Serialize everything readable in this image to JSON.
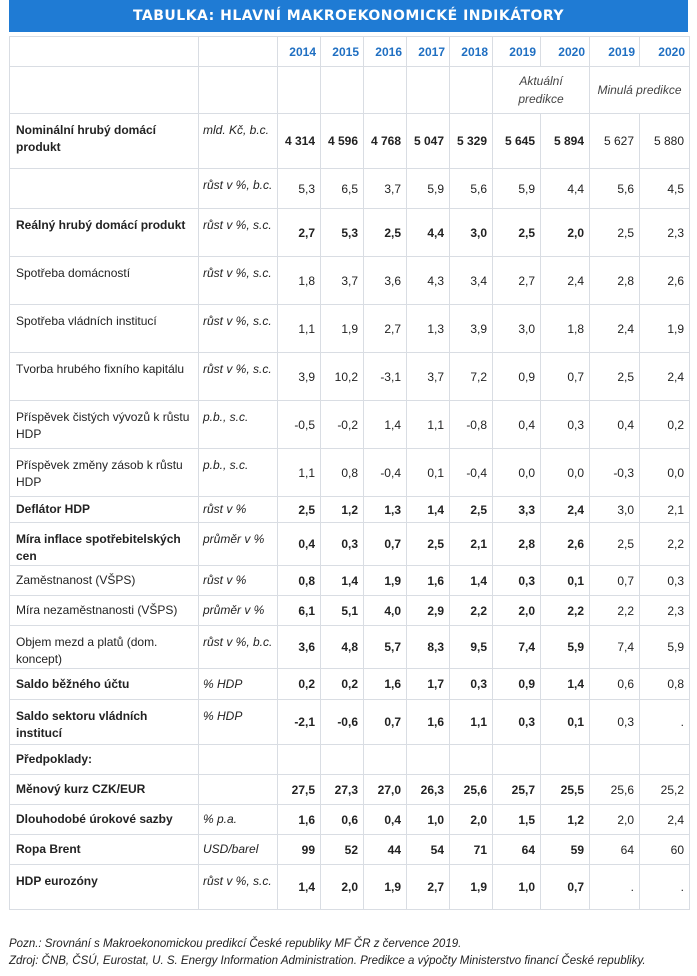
{
  "title": "TABULKA: HLAVNÍ MAKROEKONOMICKÉ INDIKÁTORY",
  "years": [
    "2014",
    "2015",
    "2016",
    "2017",
    "2018",
    "2019",
    "2020",
    "2019",
    "2020"
  ],
  "aktualni_label": "Aktuální predikce",
  "minula_label": "Minulá predikce",
  "rows": [
    {
      "name": "Nominální hrubý domácí produkt",
      "bold": true,
      "unit": "mld. Kč, b.c.",
      "values": [
        "4 314",
        "4 596",
        "4 768",
        "5 047",
        "5 329",
        "5 645",
        "5 894",
        "5 627",
        "5 880"
      ],
      "vbold": true
    },
    {
      "name": "",
      "bold": false,
      "unit": "růst v %, b.c.",
      "values": [
        "5,3",
        "6,5",
        "3,7",
        "5,9",
        "5,6",
        "5,9",
        "4,4",
        "5,6",
        "4,5"
      ],
      "vbold": false
    },
    {
      "name": "Reálný hrubý domácí produkt",
      "bold": true,
      "unit": "růst v %, s.c.",
      "values": [
        "2,7",
        "5,3",
        "2,5",
        "4,4",
        "3,0",
        "2,5",
        "2,0",
        "2,5",
        "2,3"
      ],
      "vbold": true
    },
    {
      "name": "Spotřeba domácností",
      "bold": false,
      "unit": "růst v %, s.c.",
      "values": [
        "1,8",
        "3,7",
        "3,6",
        "4,3",
        "3,4",
        "2,7",
        "2,4",
        "2,8",
        "2,6"
      ],
      "vbold": false
    },
    {
      "name": "Spotřeba vládních institucí",
      "bold": false,
      "unit": "růst v %, s.c.",
      "values": [
        "1,1",
        "1,9",
        "2,7",
        "1,3",
        "3,9",
        "3,0",
        "1,8",
        "2,4",
        "1,9"
      ],
      "vbold": false
    },
    {
      "name": "Tvorba hrubého fixního kapitálu",
      "bold": false,
      "unit": "růst v %, s.c.",
      "values": [
        "3,9",
        "10,2",
        "-3,1",
        "3,7",
        "7,2",
        "0,9",
        "0,7",
        "2,5",
        "2,4"
      ],
      "vbold": false
    },
    {
      "name": "Příspěvek čistých vývozů k růstu HDP",
      "bold": false,
      "unit": "p.b., s.c.",
      "values": [
        "-0,5",
        "-0,2",
        "1,4",
        "1,1",
        "-0,8",
        "0,4",
        "0,3",
        "0,4",
        "0,2"
      ],
      "vbold": false
    },
    {
      "name": "Příspěvek změny zásob k růstu HDP",
      "bold": false,
      "unit": "p.b., s.c.",
      "values": [
        "1,1",
        "0,8",
        "-0,4",
        "0,1",
        "-0,4",
        "0,0",
        "0,0",
        "-0,3",
        "0,0"
      ],
      "vbold": false
    },
    {
      "name": "Deflátor HDP",
      "bold": true,
      "unit": "růst v %",
      "values": [
        "2,5",
        "1,2",
        "1,3",
        "1,4",
        "2,5",
        "3,3",
        "2,4",
        "3,0",
        "2,1"
      ],
      "vbold": true
    },
    {
      "name": "Míra inflace spotřebitelských cen",
      "bold": true,
      "unit": "průměr v %",
      "values": [
        "0,4",
        "0,3",
        "0,7",
        "2,5",
        "2,1",
        "2,8",
        "2,6",
        "2,5",
        "2,2"
      ],
      "vbold": true
    },
    {
      "name": "Zaměstnanost (VŠPS)",
      "bold": false,
      "unit": "růst v %",
      "values": [
        "0,8",
        "1,4",
        "1,9",
        "1,6",
        "1,4",
        "0,3",
        "0,1",
        "0,7",
        "0,3"
      ],
      "vbold": true
    },
    {
      "name": "Míra nezaměstnanosti (VŠPS)",
      "bold": false,
      "unit": "průměr v %",
      "values": [
        "6,1",
        "5,1",
        "4,0",
        "2,9",
        "2,2",
        "2,0",
        "2,2",
        "2,2",
        "2,3"
      ],
      "vbold": true
    },
    {
      "name": "Objem mezd a platů (dom. koncept)",
      "bold": false,
      "unit": "růst v %, b.c.",
      "values": [
        "3,6",
        "4,8",
        "5,7",
        "8,3",
        "9,5",
        "7,4",
        "5,9",
        "7,4",
        "5,9"
      ],
      "vbold": true
    },
    {
      "name": "Saldo běžného účtu",
      "bold": true,
      "unit": "% HDP",
      "values": [
        "0,2",
        "0,2",
        "1,6",
        "1,7",
        "0,3",
        "0,9",
        "1,4",
        "0,6",
        "0,8"
      ],
      "vbold": true
    },
    {
      "name": "Saldo sektoru vládních institucí",
      "bold": true,
      "unit": "% HDP",
      "values": [
        "-2,1",
        "-0,6",
        "0,7",
        "1,6",
        "1,1",
        "0,3",
        "0,1",
        "0,3",
        "."
      ],
      "vbold": true
    },
    {
      "name": "Předpoklady:",
      "bold": true,
      "unit": "",
      "values": [
        "",
        "",
        "",
        "",
        "",
        "",
        "",
        "",
        ""
      ],
      "vbold": false
    },
    {
      "name": "Měnový kurz CZK/EUR",
      "bold": true,
      "unit": "",
      "values": [
        "27,5",
        "27,3",
        "27,0",
        "26,3",
        "25,6",
        "25,7",
        "25,5",
        "25,6",
        "25,2"
      ],
      "vbold": true
    },
    {
      "name": "Dlouhodobé úrokové sazby",
      "bold": true,
      "unit": "% p.a.",
      "values": [
        "1,6",
        "0,6",
        "0,4",
        "1,0",
        "2,0",
        "1,5",
        "1,2",
        "2,0",
        "2,4"
      ],
      "vbold": true
    },
    {
      "name": "Ropa Brent",
      "bold": true,
      "unit": "USD/barel",
      "values": [
        "99",
        "52",
        "44",
        "54",
        "71",
        "64",
        "59",
        "64",
        "60"
      ],
      "vbold": true
    },
    {
      "name": "HDP eurozóny",
      "bold": true,
      "unit": "růst v %, s.c.",
      "values": [
        "1,4",
        "2,0",
        "1,9",
        "2,7",
        "1,9",
        "1,0",
        "0,7",
        ".",
        "."
      ],
      "vbold": true
    }
  ],
  "footnote1": "Pozn.: Srovnání s Makroekonomickou predikcí České republiky MF ČR z července 2019.",
  "footnote2": "Zdroj: ČNB, ČSÚ, Eurostat, U. S. Energy Information Administration. Predikce a výpočty Ministerstvo financí České republiky."
}
